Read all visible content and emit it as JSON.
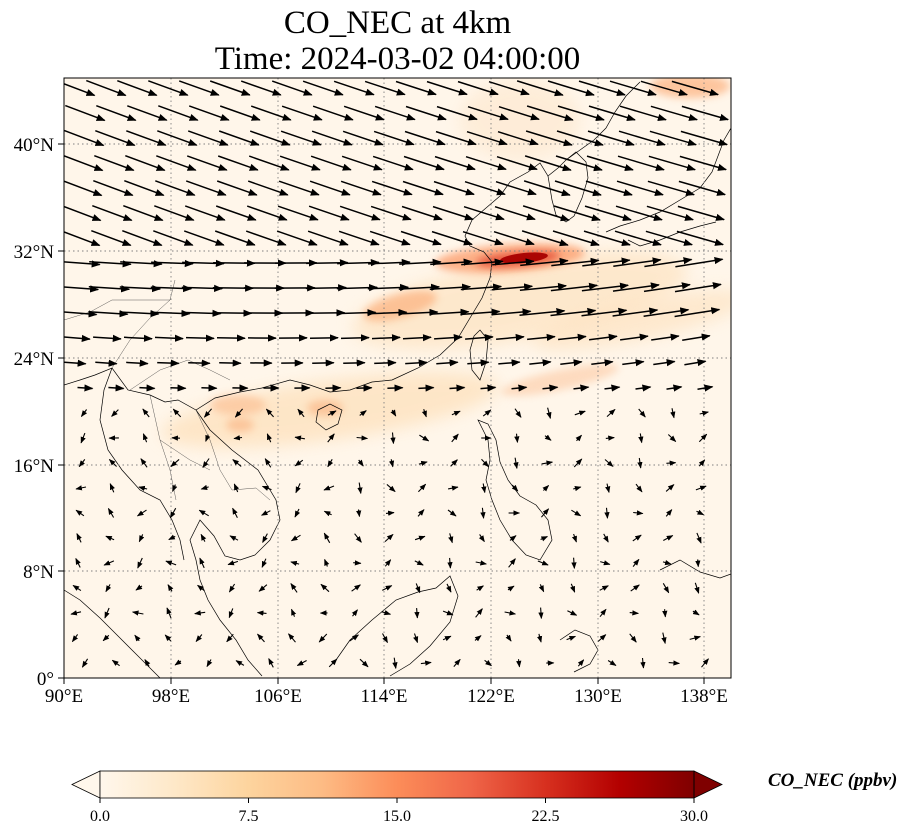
{
  "title_line1": "CO_NEC at 4km",
  "title_line2": "Time: 2024-03-02 04:00:00",
  "x_ticks": [
    "90°E",
    "98°E",
    "106°E",
    "114°E",
    "122°E",
    "130°E",
    "138°E"
  ],
  "y_ticks": [
    "0°",
    "8°N",
    "16°N",
    "24°N",
    "32°N",
    "40°N"
  ],
  "colorbar": {
    "label": "CO_NEC (ppbv)",
    "ticks": [
      "0.0",
      "7.5",
      "15.0",
      "22.5",
      "30.0"
    ],
    "min": 0,
    "max": 30,
    "extend": "both",
    "colors": [
      "#fff7ec",
      "#fee8c8",
      "#fdd49e",
      "#fdbb84",
      "#fc8d59",
      "#ef6548",
      "#d7301f",
      "#b30000",
      "#7f0000"
    ]
  },
  "map": {
    "lon_range": [
      90,
      140
    ],
    "lat_range": [
      0,
      45
    ],
    "gridlines": "dotted gray at labeled ticks",
    "features": [
      "coastlines",
      "country borders",
      "wind vectors"
    ]
  },
  "chart_data": {
    "type": "heatmap",
    "variable": "CO_NEC",
    "unit": "ppbv",
    "xlabel": "",
    "ylabel": "",
    "xlim": [
      90,
      140
    ],
    "ylim": [
      0,
      45
    ],
    "value_range": [
      0,
      30
    ],
    "hotspots": [
      {
        "lon": 125,
        "lat": 31.5,
        "value": 30
      },
      {
        "lon": 121.5,
        "lat": 31,
        "value": 16
      },
      {
        "lon": 117,
        "lat": 28,
        "value": 10
      },
      {
        "lon": 104,
        "lat": 20.5,
        "value": 7
      },
      {
        "lon": 110,
        "lat": 20,
        "value": 7
      },
      {
        "lon": 134,
        "lat": 44.5,
        "value": 8
      },
      {
        "lon": 132,
        "lat": 27,
        "value": 4
      }
    ]
  }
}
